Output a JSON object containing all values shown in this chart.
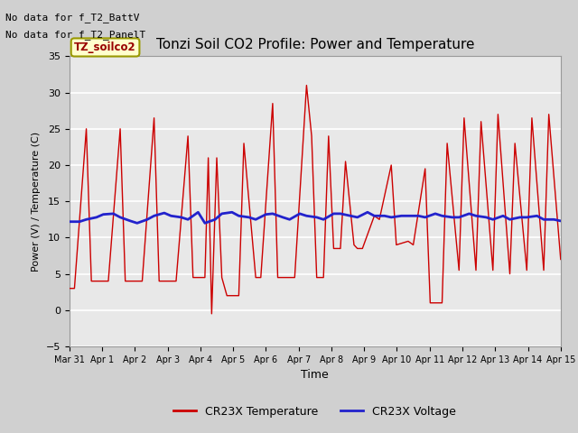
{
  "title": "Tonzi Soil CO2 Profile: Power and Temperature",
  "xlabel": "Time",
  "ylabel": "Power (V) / Temperature (C)",
  "ylim": [
    -5,
    35
  ],
  "yticks": [
    -5,
    0,
    5,
    10,
    15,
    20,
    25,
    30,
    35
  ],
  "text_no_data_1": "No data for f_T2_BattV",
  "text_no_data_2": "No data for f_T2_PanelT",
  "legend_label1": "TZ_soilco2",
  "legend_label2": "CR23X Temperature",
  "legend_label3": "CR23X Voltage",
  "red_color": "#cc0000",
  "blue_color": "#2222cc",
  "fig_bg": "#d0d0d0",
  "plot_bg": "#e8e8e8",
  "x_tick_labels": [
    "Mar 31",
    "Apr 1",
    "Apr 2",
    "Apr 3",
    "Apr 4",
    "Apr 5",
    "Apr 6",
    "Apr 7",
    "Apr 8",
    "Apr 9",
    "Apr 10",
    "Apr 11",
    "Apr 12",
    "Apr 13",
    "Apr 14",
    "Apr 15"
  ],
  "red_x": [
    0.0,
    0.15,
    0.5,
    0.65,
    1.0,
    1.15,
    1.5,
    1.65,
    2.0,
    2.15,
    2.5,
    2.65,
    3.0,
    3.15,
    3.5,
    3.65,
    4.0,
    4.1,
    4.2,
    4.35,
    4.5,
    4.65,
    5.0,
    5.15,
    5.5,
    5.65,
    6.0,
    6.15,
    6.5,
    6.65,
    7.0,
    7.15,
    7.3,
    7.5,
    7.65,
    7.8,
    8.0,
    8.15,
    8.4,
    8.5,
    8.65,
    9.0,
    9.15,
    9.5,
    9.65,
    10.0,
    10.15,
    10.5,
    10.65,
    11.0,
    11.15,
    11.5,
    11.65,
    12.0,
    12.15,
    12.5,
    12.65,
    13.0,
    13.15,
    13.5,
    13.65,
    14.0,
    14.15,
    14.5
  ],
  "red_y": [
    3.0,
    3.0,
    25.0,
    4.0,
    4.0,
    4.0,
    25.0,
    4.0,
    4.0,
    4.0,
    26.5,
    4.0,
    4.0,
    4.0,
    24.0,
    4.5,
    4.5,
    21.0,
    -0.5,
    21.0,
    4.5,
    2.0,
    2.0,
    23.0,
    4.5,
    4.5,
    28.5,
    4.5,
    4.5,
    4.5,
    31.0,
    24.0,
    4.5,
    4.5,
    24.0,
    8.5,
    8.5,
    20.5,
    9.0,
    8.5,
    8.5,
    13.0,
    12.5,
    20.0,
    9.0,
    9.5,
    9.0,
    19.5,
    1.0,
    1.0,
    23.0,
    5.5,
    26.5,
    5.5,
    26.0,
    5.5,
    27.0,
    5.0,
    23.0,
    5.5,
    26.5,
    5.5,
    27.0,
    7.0
  ],
  "blue_x": [
    0.0,
    0.3,
    0.5,
    0.8,
    1.0,
    1.3,
    1.5,
    1.8,
    2.0,
    2.3,
    2.5,
    2.8,
    3.0,
    3.3,
    3.5,
    3.8,
    4.0,
    4.3,
    4.5,
    4.8,
    5.0,
    5.3,
    5.5,
    5.8,
    6.0,
    6.3,
    6.5,
    6.8,
    7.0,
    7.3,
    7.5,
    7.8,
    8.0,
    8.3,
    8.5,
    8.8,
    9.0,
    9.3,
    9.5,
    9.8,
    10.0,
    10.3,
    10.5,
    10.8,
    11.0,
    11.3,
    11.5,
    11.8,
    12.0,
    12.3,
    12.5,
    12.8,
    13.0,
    13.3,
    13.5,
    13.8,
    14.0,
    14.3,
    14.5
  ],
  "blue_y": [
    12.2,
    12.2,
    12.5,
    12.8,
    13.2,
    13.3,
    12.8,
    12.3,
    12.0,
    12.5,
    13.0,
    13.4,
    13.0,
    12.8,
    12.5,
    13.5,
    12.0,
    12.5,
    13.3,
    13.5,
    13.0,
    12.8,
    12.5,
    13.2,
    13.3,
    12.8,
    12.5,
    13.3,
    13.0,
    12.8,
    12.5,
    13.3,
    13.3,
    13.0,
    12.8,
    13.5,
    13.0,
    13.0,
    12.8,
    13.0,
    13.0,
    13.0,
    12.8,
    13.3,
    13.0,
    12.8,
    12.8,
    13.3,
    13.0,
    12.8,
    12.5,
    13.0,
    12.5,
    12.8,
    12.8,
    13.0,
    12.5,
    12.5,
    12.3
  ]
}
